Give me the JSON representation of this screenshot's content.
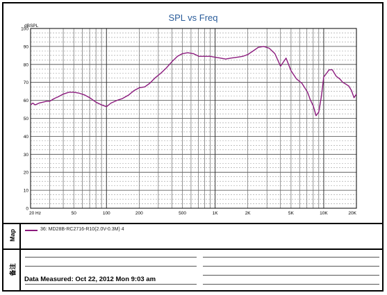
{
  "chart_data": {
    "type": "line",
    "title": "SPL vs Freq",
    "ylabel": "dBSPL",
    "xscale": "log",
    "xlim": [
      20,
      20000
    ],
    "ylim": [
      0,
      100
    ],
    "grid": true,
    "x_tick_labels": [
      "20 Hz",
      "50",
      "100",
      "200",
      "500",
      "1K",
      "2K",
      "5K",
      "10K",
      "20K"
    ],
    "x_tick_values": [
      20,
      50,
      100,
      200,
      500,
      1000,
      2000,
      5000,
      10000,
      20000
    ],
    "y_tick_labels": [
      "0",
      "10",
      "20",
      "30",
      "40",
      "50",
      "60",
      "70",
      "80",
      "90",
      "100"
    ],
    "y_tick_values": [
      0,
      10,
      20,
      30,
      40,
      50,
      60,
      70,
      80,
      90,
      100
    ],
    "series": [
      {
        "name": "36: MD28B-RC2716-R10(2.0V-0.3M)  4",
        "color": "#8b1a7d",
        "x": [
          20,
          21,
          22,
          24,
          26,
          28,
          30,
          33,
          36,
          40,
          45,
          50,
          56,
          63,
          70,
          80,
          90,
          100,
          110,
          125,
          140,
          160,
          180,
          200,
          225,
          250,
          280,
          315,
          355,
          400,
          450,
          500,
          560,
          630,
          710,
          800,
          900,
          1000,
          1120,
          1250,
          1400,
          1600,
          1800,
          2000,
          2240,
          2500,
          2800,
          3150,
          3550,
          4000,
          4500,
          5000,
          5600,
          6300,
          7100,
          7500,
          8000,
          8500,
          9000,
          9500,
          10000,
          10600,
          11200,
          12000,
          13000,
          14000,
          15000,
          16000,
          17000,
          18000,
          19000,
          20000
        ],
        "y": [
          57.5,
          58.5,
          57.5,
          58.5,
          59,
          59.5,
          59.5,
          61,
          62,
          63.5,
          64.5,
          64.5,
          64,
          63,
          61.5,
          59,
          57.5,
          56.5,
          58.5,
          60,
          61,
          63,
          65.5,
          67,
          67.5,
          69.5,
          72.5,
          75,
          78,
          81.5,
          84.5,
          86,
          86.5,
          86,
          84.5,
          84.5,
          84.5,
          84,
          83.5,
          83,
          83.5,
          84,
          84.5,
          85.5,
          87.5,
          89.5,
          90,
          89,
          86,
          79,
          83.5,
          76.5,
          72,
          69.5,
          64.5,
          60.5,
          57,
          51.5,
          53.5,
          62,
          73,
          75,
          77,
          77,
          73.5,
          72,
          70,
          69,
          68,
          65.5,
          61.5,
          63.5
        ]
      }
    ]
  },
  "side_labels": {
    "map": "Map",
    "notes": "备注"
  },
  "footer": {
    "measured": "Data Measured: Oct 22, 2012  Mon  9:03 am"
  }
}
